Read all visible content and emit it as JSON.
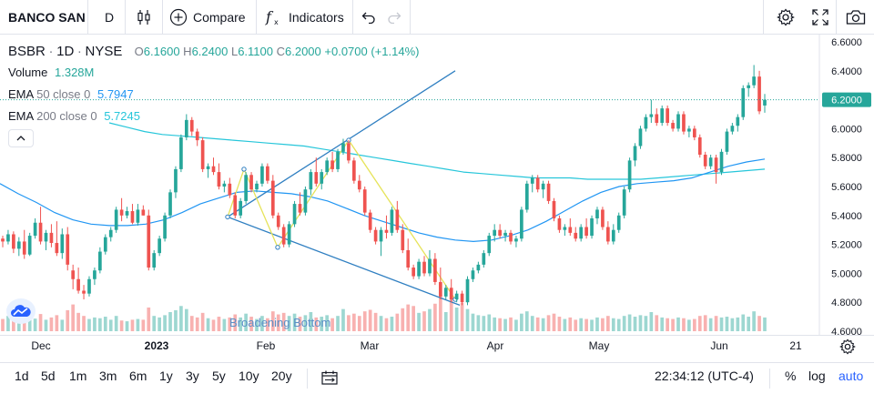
{
  "toolbar": {
    "symbol": "BANCO SAN",
    "interval": "D",
    "compare": "Compare",
    "indicators": "Indicators"
  },
  "legend": {
    "ticker": "BSBR",
    "interval": "1D",
    "exchange": "NYSE",
    "o_label": "O",
    "o_value": "6.1600",
    "h_label": "H",
    "h_value": "6.2400",
    "l_label": "L",
    "l_value": "6.1100",
    "c_label": "C",
    "c_value": "6.2000",
    "change": "+0.0700 (+1.14%)",
    "volume_label": "Volume",
    "volume_value": "1.328M",
    "ema50_label": "EMA",
    "ema50_params": "50 close 0",
    "ema50_value": "5.7947",
    "ema200_label": "EMA",
    "ema200_params": "200 close 0",
    "ema200_value": "5.7245"
  },
  "chart_data": {
    "type": "candlestick",
    "ylim": [
      4.6,
      6.6
    ],
    "y_ticks": [
      "6.6000",
      "6.4000",
      "6.2000",
      "6.0000",
      "5.8000",
      "5.6000",
      "5.4000",
      "5.2000",
      "5.0000",
      "4.8000",
      "4.6000"
    ],
    "last_price": "6.2000",
    "x_ticks": [
      "Dec",
      "2023",
      "Feb",
      "Mar",
      "Apr",
      "May",
      "Jun",
      "21"
    ],
    "annotation": "Broadening Bottom",
    "candles": [
      [
        5.24,
        5.26,
        5.18,
        5.22
      ],
      [
        5.22,
        5.3,
        5.2,
        5.27
      ],
      [
        5.27,
        5.29,
        5.14,
        5.17
      ],
      [
        5.17,
        5.25,
        5.12,
        5.22
      ],
      [
        5.22,
        5.3,
        5.1,
        5.13
      ],
      [
        5.13,
        5.28,
        5.12,
        5.26
      ],
      [
        5.26,
        5.38,
        5.24,
        5.35
      ],
      [
        5.35,
        5.46,
        5.2,
        5.22
      ],
      [
        5.22,
        5.3,
        5.16,
        5.28
      ],
      [
        5.28,
        5.34,
        5.18,
        5.21
      ],
      [
        5.21,
        5.36,
        5.12,
        5.14
      ],
      [
        5.14,
        5.31,
        5.1,
        5.27
      ],
      [
        5.27,
        5.32,
        5.02,
        5.06
      ],
      [
        5.02,
        5.06,
        4.89,
        4.96
      ],
      [
        4.96,
        5.04,
        4.86,
        4.88
      ],
      [
        4.88,
        4.92,
        4.82,
        4.86
      ],
      [
        4.86,
        4.98,
        4.84,
        4.96
      ],
      [
        4.96,
        5.04,
        4.92,
        5.02
      ],
      [
        5.02,
        5.18,
        5.0,
        5.15
      ],
      [
        5.15,
        5.27,
        5.13,
        5.25
      ],
      [
        5.25,
        5.32,
        5.22,
        5.3
      ],
      [
        5.3,
        5.46,
        5.28,
        5.44
      ],
      [
        5.44,
        5.52,
        5.36,
        5.4
      ],
      [
        5.4,
        5.46,
        5.38,
        5.43
      ],
      [
        5.43,
        5.48,
        5.34,
        5.35
      ],
      [
        5.35,
        5.48,
        5.33,
        5.44
      ],
      [
        5.44,
        5.47,
        5.4,
        5.4
      ],
      [
        5.4,
        5.44,
        5.02,
        5.04
      ],
      [
        5.04,
        5.16,
        5.02,
        5.14
      ],
      [
        5.14,
        5.26,
        5.12,
        5.24
      ],
      [
        5.24,
        5.42,
        5.22,
        5.4
      ],
      [
        5.4,
        5.58,
        5.38,
        5.56
      ],
      [
        5.56,
        5.74,
        5.52,
        5.72
      ],
      [
        5.72,
        5.96,
        5.7,
        5.94
      ],
      [
        5.94,
        6.1,
        5.92,
        6.06
      ],
      [
        6.06,
        6.08,
        5.95,
        5.98
      ],
      [
        5.98,
        6.0,
        5.88,
        5.92
      ],
      [
        5.92,
        5.94,
        5.7,
        5.72
      ],
      [
        5.72,
        5.76,
        5.66,
        5.74
      ],
      [
        5.74,
        5.8,
        5.68,
        5.7
      ],
      [
        5.7,
        5.76,
        5.58,
        5.6
      ],
      [
        5.6,
        5.64,
        5.56,
        5.62
      ],
      [
        5.62,
        5.66,
        5.52,
        5.54
      ],
      [
        5.54,
        5.56,
        5.38,
        5.4
      ],
      [
        5.4,
        5.52,
        5.38,
        5.5
      ],
      [
        5.5,
        5.7,
        5.48,
        5.68
      ],
      [
        5.68,
        5.7,
        5.56,
        5.58
      ],
      [
        5.58,
        5.64,
        5.56,
        5.62
      ],
      [
        5.62,
        5.76,
        5.6,
        5.74
      ],
      [
        5.74,
        5.76,
        5.62,
        5.64
      ],
      [
        5.64,
        5.68,
        5.38,
        5.4
      ],
      [
        5.4,
        5.42,
        5.3,
        5.32
      ],
      [
        5.32,
        5.34,
        5.18,
        5.2
      ],
      [
        5.2,
        5.36,
        5.18,
        5.34
      ],
      [
        5.34,
        5.5,
        5.32,
        5.48
      ],
      [
        5.48,
        5.56,
        5.4,
        5.42
      ],
      [
        5.42,
        5.6,
        5.4,
        5.58
      ],
      [
        5.58,
        5.72,
        5.54,
        5.7
      ],
      [
        5.7,
        5.8,
        5.6,
        5.62
      ],
      [
        5.62,
        5.72,
        5.58,
        5.7
      ],
      [
        5.7,
        5.8,
        5.68,
        5.78
      ],
      [
        5.78,
        5.84,
        5.7,
        5.72
      ],
      [
        5.72,
        5.86,
        5.7,
        5.84
      ],
      [
        5.84,
        5.93,
        5.82,
        5.9
      ],
      [
        5.9,
        5.92,
        5.76,
        5.78
      ],
      [
        5.78,
        5.8,
        5.62,
        5.64
      ],
      [
        5.64,
        5.68,
        5.56,
        5.58
      ],
      [
        5.58,
        5.6,
        5.4,
        5.42
      ],
      [
        5.42,
        5.44,
        5.28,
        5.3
      ],
      [
        5.3,
        5.32,
        5.2,
        5.22
      ],
      [
        5.22,
        5.32,
        5.12,
        5.3
      ],
      [
        5.3,
        5.4,
        5.24,
        5.28
      ],
      [
        5.28,
        5.46,
        5.26,
        5.44
      ],
      [
        5.44,
        5.5,
        5.28,
        5.3
      ],
      [
        5.3,
        5.34,
        5.14,
        5.16
      ],
      [
        5.16,
        5.24,
        5.02,
        5.04
      ],
      [
        5.04,
        5.06,
        4.96,
        4.98
      ],
      [
        4.98,
        5.1,
        4.96,
        5.08
      ],
      [
        5.08,
        5.12,
        4.98,
        5.0
      ],
      [
        5.0,
        5.16,
        4.98,
        5.1
      ],
      [
        5.1,
        5.14,
        4.92,
        4.94
      ],
      [
        4.94,
        5.04,
        4.82,
        4.84
      ],
      [
        4.84,
        4.92,
        4.82,
        4.9
      ],
      [
        4.9,
        4.96,
        4.8,
        4.82
      ],
      [
        4.82,
        4.88,
        4.8,
        4.86
      ],
      [
        4.86,
        4.88,
        4.78,
        4.8
      ],
      [
        4.8,
        4.98,
        4.78,
        4.96
      ],
      [
        4.96,
        5.04,
        4.94,
        5.02
      ],
      [
        5.02,
        5.08,
        5.0,
        5.06
      ],
      [
        5.06,
        5.16,
        5.04,
        5.14
      ],
      [
        5.14,
        5.28,
        5.12,
        5.26
      ],
      [
        5.26,
        5.34,
        5.22,
        5.3
      ],
      [
        5.3,
        5.34,
        5.24,
        5.26
      ],
      [
        5.26,
        5.3,
        5.22,
        5.28
      ],
      [
        5.28,
        5.3,
        5.2,
        5.22
      ],
      [
        5.22,
        5.26,
        5.18,
        5.24
      ],
      [
        5.24,
        5.46,
        5.22,
        5.44
      ],
      [
        5.44,
        5.64,
        5.42,
        5.62
      ],
      [
        5.62,
        5.68,
        5.56,
        5.66
      ],
      [
        5.66,
        5.68,
        5.56,
        5.58
      ],
      [
        5.58,
        5.64,
        5.52,
        5.62
      ],
      [
        5.62,
        5.64,
        5.48,
        5.5
      ],
      [
        5.5,
        5.52,
        5.36,
        5.38
      ],
      [
        5.38,
        5.4,
        5.28,
        5.3
      ],
      [
        5.3,
        5.34,
        5.26,
        5.32
      ],
      [
        5.32,
        5.38,
        5.26,
        5.28
      ],
      [
        5.28,
        5.32,
        5.22,
        5.24
      ],
      [
        5.24,
        5.34,
        5.22,
        5.32
      ],
      [
        5.32,
        5.38,
        5.24,
        5.26
      ],
      [
        5.26,
        5.4,
        5.24,
        5.38
      ],
      [
        5.38,
        5.46,
        5.34,
        5.44
      ],
      [
        5.44,
        5.46,
        5.3,
        5.32
      ],
      [
        5.32,
        5.36,
        5.2,
        5.22
      ],
      [
        5.22,
        5.34,
        5.2,
        5.3
      ],
      [
        5.3,
        5.42,
        5.28,
        5.4
      ],
      [
        5.4,
        5.6,
        5.38,
        5.58
      ],
      [
        5.58,
        5.8,
        5.56,
        5.78
      ],
      [
        5.78,
        5.9,
        5.74,
        5.88
      ],
      [
        5.88,
        6.02,
        5.86,
        6.0
      ],
      [
        6.0,
        6.1,
        5.98,
        6.08
      ],
      [
        6.08,
        6.2,
        6.04,
        6.1
      ],
      [
        6.1,
        6.14,
        6.02,
        6.04
      ],
      [
        6.04,
        6.16,
        6.02,
        6.14
      ],
      [
        6.14,
        6.16,
        6.02,
        6.04
      ],
      [
        6.04,
        6.06,
        5.98,
        6.0
      ],
      [
        6.0,
        6.12,
        5.98,
        6.1
      ],
      [
        6.1,
        6.12,
        5.96,
        5.98
      ],
      [
        5.98,
        6.02,
        5.94,
        6.0
      ],
      [
        6.0,
        6.02,
        5.92,
        5.94
      ],
      [
        5.94,
        5.96,
        5.8,
        5.82
      ],
      [
        5.82,
        5.84,
        5.72,
        5.74
      ],
      [
        5.74,
        5.82,
        5.72,
        5.8
      ],
      [
        5.8,
        5.82,
        5.62,
        5.7
      ],
      [
        5.7,
        5.86,
        5.68,
        5.84
      ],
      [
        5.84,
        6.0,
        5.82,
        5.98
      ],
      [
        5.98,
        6.04,
        5.96,
        6.02
      ],
      [
        6.02,
        6.1,
        5.98,
        6.08
      ],
      [
        6.08,
        6.3,
        6.06,
        6.28
      ],
      [
        6.28,
        6.32,
        6.22,
        6.3
      ],
      [
        6.3,
        6.44,
        6.28,
        6.36
      ],
      [
        6.36,
        6.4,
        6.1,
        6.12
      ],
      [
        6.16,
        6.24,
        6.11,
        6.2
      ]
    ],
    "volume_scale": [
      0.32,
      0.4,
      0.28,
      0.35,
      0.3,
      0.38,
      0.33,
      0.45,
      0.3,
      0.36,
      0.42,
      0.3,
      0.55,
      0.7,
      0.48,
      0.4,
      0.32,
      0.36,
      0.34,
      0.38,
      0.3,
      0.4,
      0.28,
      0.26,
      0.3,
      0.32,
      0.3,
      0.62,
      0.4,
      0.36,
      0.42,
      0.5,
      0.55,
      0.66,
      0.58,
      0.4,
      0.36,
      0.48,
      0.34,
      0.3,
      0.38,
      0.32,
      0.36,
      0.44,
      0.36,
      0.46,
      0.38,
      0.32,
      0.4,
      0.34,
      0.52,
      0.44,
      0.48,
      0.4,
      0.46,
      0.38,
      0.42,
      0.5,
      0.36,
      0.38,
      0.42,
      0.34,
      0.4,
      0.58,
      0.42,
      0.46,
      0.4,
      0.52,
      0.56,
      0.48,
      0.4,
      0.34,
      0.38,
      0.46,
      0.6,
      0.7,
      0.66,
      0.48,
      0.52,
      0.58,
      0.72,
      0.95,
      0.5,
      1.0,
      0.62,
      0.74,
      0.58,
      0.46,
      0.42,
      0.4,
      0.44,
      0.36,
      0.34,
      0.32,
      0.36,
      0.3,
      0.46,
      0.52,
      0.4,
      0.36,
      0.34,
      0.42,
      0.46,
      0.38,
      0.32,
      0.36,
      0.3,
      0.34,
      0.32,
      0.3,
      0.36,
      0.34,
      0.4,
      0.34,
      0.32,
      0.4,
      0.44,
      0.38,
      0.42,
      0.4,
      0.5,
      0.42,
      0.36,
      0.34,
      0.32,
      0.36,
      0.34,
      0.3,
      0.32,
      0.4,
      0.42,
      0.34,
      0.4,
      0.36,
      0.38,
      0.34,
      0.36,
      0.44,
      0.38,
      0.52,
      0.4,
      0.36,
      0.4,
      0.34
    ],
    "ema50": [
      5.62,
      5.55,
      5.49,
      5.42,
      5.37,
      5.34,
      5.33,
      5.33,
      5.34,
      5.37,
      5.42,
      5.48,
      5.52,
      5.56,
      5.57,
      5.56,
      5.55,
      5.53,
      5.5,
      5.45,
      5.4,
      5.36,
      5.32,
      5.28,
      5.25,
      5.23,
      5.22,
      5.23,
      5.26,
      5.3,
      5.36,
      5.43,
      5.5,
      5.56,
      5.6,
      5.62,
      5.63,
      5.64,
      5.66,
      5.7,
      5.74,
      5.77,
      5.79
    ],
    "ema200": [
      6.04,
      6.01,
      5.98,
      5.96,
      5.95,
      5.94,
      5.93,
      5.92,
      5.91,
      5.9,
      5.89,
      5.88,
      5.86,
      5.84,
      5.82,
      5.8,
      5.78,
      5.76,
      5.74,
      5.72,
      5.7,
      5.69,
      5.68,
      5.67,
      5.66,
      5.66,
      5.66,
      5.65,
      5.65,
      5.65,
      5.65,
      5.66,
      5.67,
      5.68,
      5.69,
      5.7,
      5.71,
      5.72
    ]
  },
  "timebar": {
    "gear": "settings"
  },
  "bottombar": {
    "ranges": [
      "1d",
      "5d",
      "1m",
      "3m",
      "6m",
      "1y",
      "3y",
      "5y",
      "10y",
      "20y"
    ],
    "clock": "22:34:12 (UTC-4)",
    "percent": "%",
    "log": "log",
    "auto": "auto"
  }
}
